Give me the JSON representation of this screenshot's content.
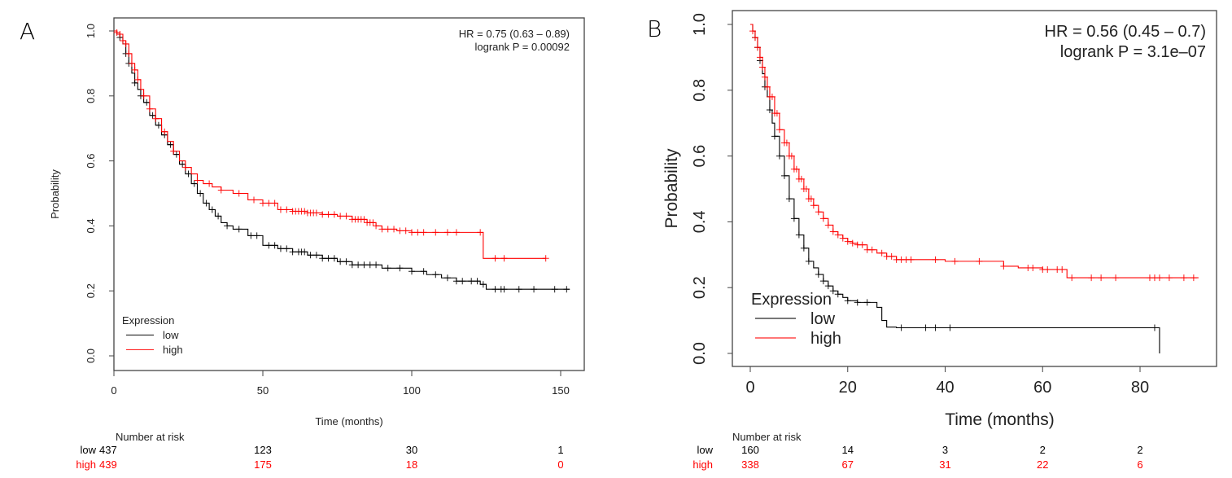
{
  "figure": {
    "colors": {
      "low": "#000000",
      "high": "#ff0000",
      "axis": "#444444"
    }
  },
  "chart_data": [
    {
      "type": "line",
      "panel_label": "A",
      "subtype": "kaplan-meier",
      "title": "",
      "xlabel": "Time (months)",
      "ylabel": "Probability",
      "xlim": [
        0,
        155
      ],
      "ylim": [
        0,
        1
      ],
      "xticks": [
        "0",
        "50",
        "100",
        "150"
      ],
      "xtick_values": [
        0,
        50,
        100,
        150
      ],
      "yticks": [
        "0.0",
        "0.2",
        "0.4",
        "0.6",
        "0.8",
        "1.0"
      ],
      "ytick_values": [
        0,
        0.2,
        0.4,
        0.6,
        0.8,
        1.0
      ],
      "annotation": [
        "HR = 0.75 (0.63 – 0.89)",
        "logrank P = 0.00092"
      ],
      "legend": {
        "title": "Expression",
        "entries": [
          "low",
          "high"
        ],
        "placement": "bottom-left"
      },
      "series": [
        {
          "name": "low",
          "color": "#000000",
          "x": [
            0,
            1,
            2,
            3,
            4,
            5,
            6,
            7,
            8,
            9,
            10,
            12,
            14,
            16,
            18,
            20,
            22,
            24,
            26,
            28,
            30,
            32,
            34,
            36,
            38,
            40,
            45,
            50,
            55,
            60,
            65,
            70,
            75,
            80,
            85,
            90,
            95,
            100,
            105,
            110,
            115,
            120,
            123,
            125,
            130,
            140,
            150,
            153
          ],
          "y": [
            1.0,
            0.99,
            0.98,
            0.96,
            0.93,
            0.9,
            0.87,
            0.84,
            0.82,
            0.8,
            0.78,
            0.74,
            0.71,
            0.68,
            0.65,
            0.62,
            0.59,
            0.56,
            0.53,
            0.5,
            0.47,
            0.45,
            0.43,
            0.41,
            0.4,
            0.39,
            0.37,
            0.34,
            0.33,
            0.32,
            0.31,
            0.3,
            0.29,
            0.28,
            0.28,
            0.27,
            0.27,
            0.26,
            0.25,
            0.24,
            0.23,
            0.23,
            0.22,
            0.205,
            0.205,
            0.205,
            0.205,
            0.205
          ],
          "censor_x": [
            2,
            4,
            5,
            7,
            9,
            11,
            13,
            15,
            17,
            19,
            21,
            23,
            25,
            27,
            29,
            31,
            33,
            35,
            38,
            42,
            46,
            48,
            52,
            54,
            56,
            58,
            60,
            62,
            63,
            64,
            66,
            68,
            70,
            72,
            74,
            76,
            78,
            80,
            82,
            84,
            86,
            88,
            92,
            96,
            100,
            104,
            108,
            112,
            115,
            117,
            120,
            122,
            124,
            128,
            130,
            131,
            136,
            141,
            148,
            152
          ]
        },
        {
          "name": "high",
          "color": "#ff0000",
          "x": [
            0,
            1,
            2,
            3,
            4,
            5,
            6,
            7,
            8,
            9,
            10,
            12,
            14,
            16,
            18,
            20,
            22,
            24,
            26,
            28,
            30,
            33,
            36,
            40,
            45,
            50,
            55,
            60,
            65,
            70,
            75,
            80,
            85,
            88,
            90,
            95,
            100,
            105,
            110,
            115,
            120,
            123.5,
            124,
            130,
            140,
            145
          ],
          "y": [
            1.0,
            0.995,
            0.99,
            0.97,
            0.96,
            0.93,
            0.9,
            0.88,
            0.85,
            0.82,
            0.8,
            0.76,
            0.73,
            0.69,
            0.66,
            0.63,
            0.6,
            0.58,
            0.56,
            0.54,
            0.53,
            0.52,
            0.51,
            0.5,
            0.48,
            0.47,
            0.45,
            0.445,
            0.44,
            0.435,
            0.43,
            0.42,
            0.41,
            0.4,
            0.39,
            0.385,
            0.38,
            0.38,
            0.38,
            0.38,
            0.38,
            0.38,
            0.3,
            0.3,
            0.3,
            0.3
          ],
          "censor_x": [
            1,
            2,
            3,
            4,
            5,
            6,
            7,
            8,
            10,
            12,
            14,
            17,
            20,
            24,
            28,
            32,
            36,
            42,
            47,
            50,
            52,
            54,
            56,
            58,
            60,
            61,
            62,
            63,
            64,
            65,
            66,
            67,
            68,
            70,
            72,
            74,
            76,
            78,
            80,
            81,
            82,
            83,
            84,
            85,
            86,
            87,
            88,
            90,
            92,
            94,
            96,
            98,
            100,
            102,
            104,
            108,
            112,
            115,
            123,
            128,
            131,
            145
          ]
        }
      ],
      "risk_table": {
        "title": "Number at risk",
        "times": [
          0,
          50,
          100,
          150
        ],
        "rows": [
          {
            "label": "low",
            "values": [
              "437",
              "123",
              "30",
              "1"
            ]
          },
          {
            "label": "high",
            "values": [
              "439",
              "175",
              "18",
              "0"
            ]
          }
        ]
      }
    },
    {
      "type": "line",
      "panel_label": "B",
      "subtype": "kaplan-meier",
      "title": "",
      "xlabel": "Time (months)",
      "ylabel": "Probability",
      "xlim": [
        0,
        95
      ],
      "ylim": [
        0,
        1
      ],
      "xticks": [
        "0",
        "20",
        "40",
        "60",
        "80"
      ],
      "xtick_values": [
        0,
        20,
        40,
        60,
        80
      ],
      "yticks": [
        "0.0",
        "0.2",
        "0.4",
        "0.6",
        "0.8",
        "1.0"
      ],
      "ytick_values": [
        0,
        0.2,
        0.4,
        0.6,
        0.8,
        1.0
      ],
      "annotation": [
        "HR = 0.56 (0.45 – 0.7)",
        "logrank P = 3.1e–07"
      ],
      "legend": {
        "title": "Expression",
        "entries": [
          "low",
          "high"
        ],
        "placement": "bottom-left"
      },
      "series": [
        {
          "name": "low",
          "color": "#000000",
          "x": [
            0,
            0.5,
            1,
            1.5,
            2,
            2.5,
            3,
            3.5,
            4,
            4.5,
            5,
            6,
            7,
            8,
            9,
            10,
            11,
            12,
            13,
            14,
            15,
            16,
            17,
            18,
            19,
            20,
            22,
            24,
            25,
            26,
            27,
            28,
            30,
            35,
            40,
            45,
            50,
            60,
            70,
            80,
            83,
            84
          ],
          "y": [
            1.0,
            0.98,
            0.96,
            0.93,
            0.89,
            0.85,
            0.81,
            0.78,
            0.74,
            0.7,
            0.66,
            0.6,
            0.54,
            0.47,
            0.41,
            0.36,
            0.32,
            0.28,
            0.26,
            0.24,
            0.22,
            0.205,
            0.19,
            0.18,
            0.17,
            0.16,
            0.155,
            0.155,
            0.155,
            0.14,
            0.1,
            0.08,
            0.078,
            0.078,
            0.078,
            0.078,
            0.078,
            0.078,
            0.078,
            0.078,
            0.078,
            0.0
          ],
          "censor_x": [
            1,
            1.5,
            2,
            3,
            4,
            5,
            6,
            7,
            8,
            9,
            10,
            11,
            12,
            14,
            15,
            16,
            17,
            18,
            20,
            22,
            24,
            31,
            36,
            38,
            41,
            83
          ]
        },
        {
          "name": "high",
          "color": "#ff0000",
          "x": [
            0,
            0.5,
            1,
            1.5,
            2,
            2.5,
            3,
            3.5,
            4,
            5,
            6,
            7,
            8,
            9,
            10,
            11,
            12,
            13,
            14,
            15,
            16,
            17,
            18,
            19,
            20,
            21,
            22,
            24,
            26,
            28,
            30,
            32,
            35,
            40,
            45,
            50,
            52,
            55,
            60,
            65,
            70,
            80,
            90,
            92
          ],
          "y": [
            1.0,
            0.98,
            0.96,
            0.93,
            0.9,
            0.87,
            0.84,
            0.81,
            0.78,
            0.73,
            0.68,
            0.64,
            0.6,
            0.56,
            0.53,
            0.5,
            0.47,
            0.45,
            0.43,
            0.41,
            0.39,
            0.37,
            0.36,
            0.35,
            0.34,
            0.335,
            0.33,
            0.315,
            0.305,
            0.295,
            0.285,
            0.285,
            0.285,
            0.28,
            0.28,
            0.28,
            0.265,
            0.26,
            0.255,
            0.23,
            0.23,
            0.23,
            0.23,
            0.23
          ],
          "censor_x": [
            0.5,
            1,
            1.5,
            2,
            2.5,
            3,
            3.5,
            4,
            4.5,
            5,
            5.5,
            6,
            7,
            7.5,
            8,
            8.5,
            9,
            9.5,
            10,
            10.5,
            11,
            11.5,
            12,
            12.5,
            13,
            14,
            15,
            16,
            17,
            18,
            19,
            20,
            21,
            22,
            23,
            24,
            25,
            27,
            28,
            29,
            30,
            31,
            32,
            33,
            38,
            42,
            47,
            52,
            57,
            58,
            60,
            61,
            63,
            64,
            66,
            70,
            72,
            75,
            82,
            83,
            84,
            86,
            89,
            91
          ]
        }
      ],
      "risk_table": {
        "title": "Number at risk",
        "times": [
          0,
          20,
          40,
          60,
          80
        ],
        "rows": [
          {
            "label": "low",
            "values": [
              "160",
              "14",
              "3",
              "2",
              "2"
            ]
          },
          {
            "label": "high",
            "values": [
              "338",
              "67",
              "31",
              "22",
              "6"
            ]
          }
        ]
      }
    }
  ]
}
